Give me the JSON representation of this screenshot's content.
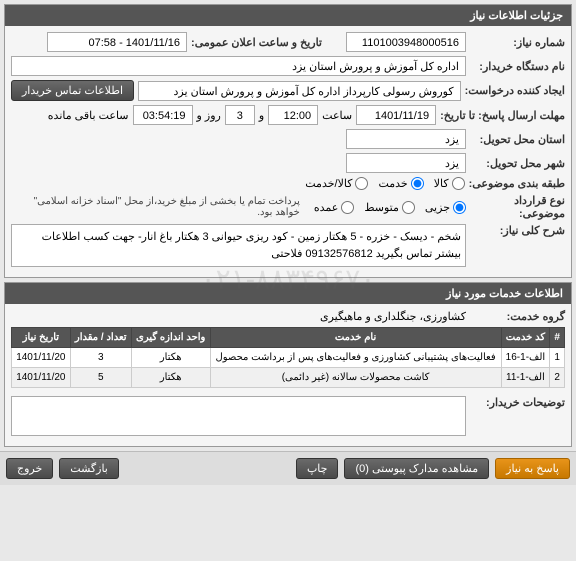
{
  "panel1_title": "جزئیات اطلاعات نیاز",
  "niaz_number_label": "شماره نیاز:",
  "niaz_number": "1101003948000516",
  "announce_label": "تاریخ و ساعت اعلان عمومی:",
  "announce_value": "1401/11/16 - 07:58",
  "buyer_label": "نام دستگاه خریدار:",
  "buyer_value": "اداره کل آموزش و پرورش استان یزد",
  "requester_label": "ایجاد کننده درخواست:",
  "requester_value": "کوروش رسولی کارپرداز اداره کل آموزش و پرورش استان یزد",
  "contact_btn": "اطلاعات تماس خریدار",
  "deadline_label": "مهلت ارسال پاسخ: تا تاریخ:",
  "deadline_date": "1401/11/19",
  "saat_label": "ساعت",
  "deadline_time": "12:00",
  "va_label": "و",
  "rooz_label": "روز و",
  "days": "3",
  "remaining_time": "03:54:19",
  "remaining_label": "ساعت باقی مانده",
  "delivery_province_label": "استان محل تحویل:",
  "delivery_province": "یزد",
  "delivery_city_label": "شهر محل تحویل:",
  "delivery_city": "یزد",
  "group_label": "طبقه بندی موضوعی:",
  "kala": "کالا",
  "khadamat": "خدمت",
  "kala_khadamat": "کالا/خدمت",
  "buy_type_label": "نوع قرارداد موضوعی:",
  "jozei": "جزیی",
  "motavaset": "متوسط",
  "omده": "عمده",
  "note_text": "پرداخت تمام یا بخشی از مبلغ خرید،از محل \"اسناد خزانه اسلامی\" خواهد بود.",
  "desc_label": "شرح کلی نیاز:",
  "desc_text": "شخم - دیسک - خزره - 5 هکتار زمین - کود ریزی حیوانی  3 هکتار باغ انار- جهت کسب اطلاعات بیشتر تماس بگیرید 09132576812 فلاحتی",
  "panel2_title": "اطلاعات خدمات مورد نیاز",
  "group_khadamat_label": "گروه خدمت:",
  "group_khadamat_value": "کشاورزی، جنگلداری و ماهیگیری",
  "th_row": "#",
  "th_code": "کد خدمت",
  "th_name": "نام خدمت",
  "th_unit": "واحد اندازه گیری",
  "th_qty": "تعداد / مقدار",
  "th_date": "تاریخ نیاز",
  "rows": [
    {
      "n": "1",
      "code": "الف-1-16",
      "name": "فعالیت‌های پشتیبانی کشاورزی و فعالیت‌های پس از برداشت محصول",
      "unit": "هکتار",
      "qty": "3",
      "date": "1401/11/20"
    },
    {
      "n": "2",
      "code": "الف-1-11",
      "name": "کاشت محصولات سالانه (غیر دائمی)",
      "unit": "هکتار",
      "qty": "5",
      "date": "1401/11/20"
    }
  ],
  "buyer_notes_label": "توضیحات خریدار:",
  "btn_reply": "پاسخ به نیاز",
  "btn_attach": "مشاهده مدارک پیوستی (0)",
  "btn_print": "چاپ",
  "btn_back": "بازگشت",
  "btn_exit": "خروج",
  "watermark": "۰۲۱-۸۸۳۴۹۶۷۰"
}
